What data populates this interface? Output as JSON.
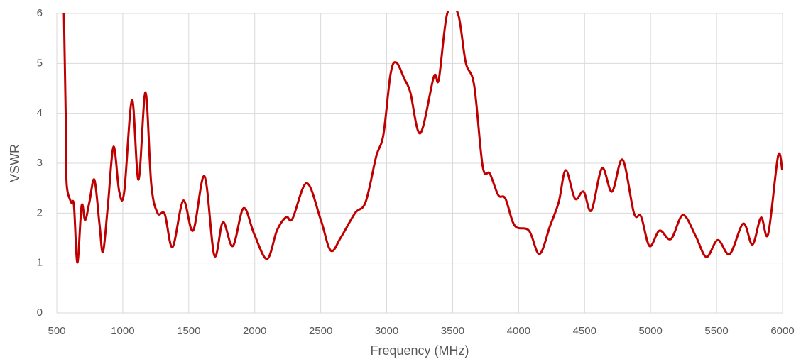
{
  "chart_data": {
    "type": "line",
    "x_label": "Frequency (MHz)",
    "y_label": "VSWR",
    "xlim": [
      500,
      6000
    ],
    "ylim": [
      0,
      6
    ],
    "xticks": [
      500,
      1000,
      1500,
      2000,
      2500,
      3000,
      3500,
      4000,
      4500,
      5000,
      5500,
      6000
    ],
    "yticks": [
      0,
      1,
      2,
      3,
      4,
      5,
      6
    ],
    "grid": true,
    "series": [
      {
        "color": "#c00000",
        "x": [
          554,
          570,
          575,
          608,
          630,
          656,
          688,
          715,
          747,
          785,
          823,
          850,
          887,
          930,
          973,
          1011,
          1070,
          1119,
          1172,
          1216,
          1264,
          1318,
          1377,
          1458,
          1533,
          1619,
          1694,
          1759,
          1834,
          1915,
          1996,
          2093,
          2168,
          2238,
          2286,
          2394,
          2501,
          2576,
          2652,
          2760,
          2840,
          2921,
          2975,
          3029,
          3072,
          3136,
          3179,
          3255,
          3357,
          3395,
          3459,
          3540,
          3599,
          3663,
          3728,
          3782,
          3846,
          3900,
          3970,
          4078,
          4158,
          4239,
          4304,
          4357,
          4427,
          4492,
          4551,
          4632,
          4707,
          4788,
          4874,
          4928,
          4992,
          5068,
          5154,
          5245,
          5342,
          5423,
          5509,
          5600,
          5702,
          5772,
          5837,
          5891,
          5966,
          5998
        ],
        "values": [
          6.0,
          3.57,
          2.57,
          2.22,
          2.15,
          1.01,
          2.15,
          1.86,
          2.22,
          2.67,
          1.79,
          1.22,
          2.15,
          3.33,
          2.43,
          2.43,
          4.27,
          2.67,
          4.42,
          2.57,
          2.0,
          1.98,
          1.32,
          2.25,
          1.65,
          2.74,
          1.15,
          1.82,
          1.34,
          2.1,
          1.58,
          1.08,
          1.65,
          1.92,
          1.89,
          2.6,
          1.86,
          1.25,
          1.51,
          2.0,
          2.22,
          3.14,
          3.57,
          4.78,
          5.02,
          4.68,
          4.42,
          3.6,
          4.73,
          4.68,
          6.0,
          6.0,
          5.02,
          4.56,
          2.93,
          2.79,
          2.36,
          2.29,
          1.75,
          1.65,
          1.18,
          1.75,
          2.22,
          2.86,
          2.29,
          2.43,
          2.05,
          2.9,
          2.43,
          3.07,
          2.0,
          1.93,
          1.34,
          1.65,
          1.48,
          1.96,
          1.54,
          1.12,
          1.46,
          1.18,
          1.79,
          1.37,
          1.91,
          1.58,
          3.14,
          2.86
        ]
      }
    ]
  }
}
